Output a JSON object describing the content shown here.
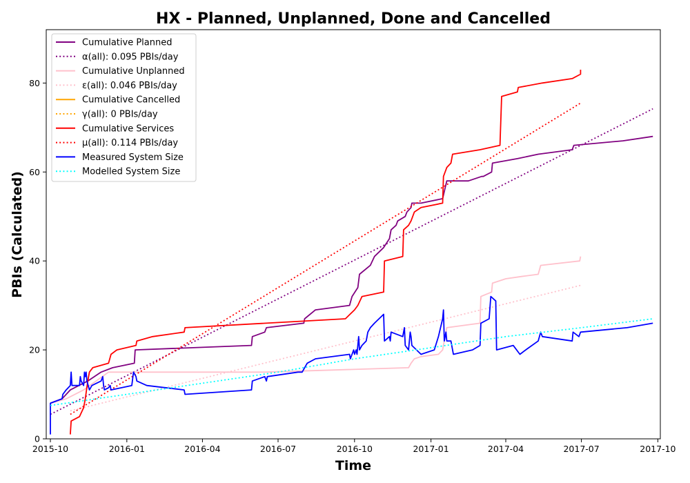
{
  "chart_data": {
    "type": "line",
    "title": "HX - Planned, Unplanned, Done  and Cancelled",
    "xlabel": "Time",
    "ylabel": "PBIs (Calculated)",
    "xlim": [
      "2015-09-26",
      "2017-10-04"
    ],
    "ylim": [
      0,
      92
    ],
    "x_ticks": [
      "2015-10",
      "2016-01",
      "2016-04",
      "2016-07",
      "2016-10",
      "2017-01",
      "2017-04",
      "2017-07",
      "2017-10"
    ],
    "y_ticks": [
      0,
      20,
      40,
      60,
      80
    ],
    "grid": false,
    "legend_position": "upper-left",
    "series": [
      {
        "name": "Cumulative Planned",
        "color": "#800080",
        "style": "solid",
        "points": [
          [
            "2015-10-01",
            8
          ],
          [
            "2015-10-15",
            9
          ],
          [
            "2015-10-25",
            11
          ],
          [
            "2015-11-15",
            13
          ],
          [
            "2015-12-01",
            15
          ],
          [
            "2015-12-15",
            16
          ],
          [
            "2016-01-10",
            17
          ],
          [
            "2016-01-11",
            20
          ],
          [
            "2016-05-30",
            21
          ],
          [
            "2016-05-31",
            23
          ],
          [
            "2016-06-15",
            24
          ],
          [
            "2016-06-17",
            25
          ],
          [
            "2016-08-01",
            26
          ],
          [
            "2016-08-02",
            27
          ],
          [
            "2016-08-15",
            29
          ],
          [
            "2016-09-25",
            30
          ],
          [
            "2016-09-28",
            32
          ],
          [
            "2016-10-05",
            34
          ],
          [
            "2016-10-07",
            37
          ],
          [
            "2016-10-20",
            39
          ],
          [
            "2016-10-25",
            41
          ],
          [
            "2016-11-05",
            43
          ],
          [
            "2016-11-12",
            45
          ],
          [
            "2016-11-14",
            47
          ],
          [
            "2016-11-20",
            48
          ],
          [
            "2016-11-22",
            49
          ],
          [
            "2016-12-01",
            50
          ],
          [
            "2016-12-03",
            51
          ],
          [
            "2016-12-08",
            52
          ],
          [
            "2016-12-09",
            53
          ],
          [
            "2016-12-20",
            53
          ],
          [
            "2017-01-15",
            54
          ],
          [
            "2017-01-20",
            58
          ],
          [
            "2017-02-15",
            58
          ],
          [
            "2017-03-03",
            59
          ],
          [
            "2017-03-05",
            59
          ],
          [
            "2017-03-15",
            60
          ],
          [
            "2017-03-16",
            62
          ],
          [
            "2017-04-15",
            63
          ],
          [
            "2017-05-10",
            64
          ],
          [
            "2017-06-20",
            65
          ],
          [
            "2017-06-22",
            66
          ],
          [
            "2017-08-20",
            67
          ],
          [
            "2017-09-25",
            68
          ]
        ]
      },
      {
        "name": "α(all): 0.095 PBIs/day",
        "color": "#800080",
        "style": "dotted",
        "points": [
          [
            "2015-10-01",
            5.5
          ],
          [
            "2017-09-25",
            74.2
          ]
        ]
      },
      {
        "name": "Cumulative Unplanned",
        "color": "#ffc0cb",
        "style": "solid",
        "points": [
          [
            "2015-10-01",
            8
          ],
          [
            "2015-10-20",
            9
          ],
          [
            "2015-11-10",
            11
          ],
          [
            "2015-11-25",
            13
          ],
          [
            "2015-12-10",
            15
          ],
          [
            "2016-06-15",
            15
          ],
          [
            "2016-12-05",
            16
          ],
          [
            "2016-12-08",
            17
          ],
          [
            "2016-12-12",
            18
          ],
          [
            "2016-12-20",
            18.5
          ],
          [
            "2017-01-10",
            19
          ],
          [
            "2017-01-15",
            20
          ],
          [
            "2017-01-20",
            25
          ],
          [
            "2017-03-01",
            26
          ],
          [
            "2017-03-02",
            32
          ],
          [
            "2017-03-15",
            33
          ],
          [
            "2017-03-16",
            35
          ],
          [
            "2017-04-01",
            36
          ],
          [
            "2017-04-20",
            36.5
          ],
          [
            "2017-05-10",
            37
          ],
          [
            "2017-05-13",
            39
          ],
          [
            "2017-06-29",
            40
          ],
          [
            "2017-06-30",
            41
          ]
        ]
      },
      {
        "name": "ε(all): 0.046 PBIs/day",
        "color": "#ffc0cb",
        "style": "dotted",
        "points": [
          [
            "2015-10-25",
            6.3
          ],
          [
            "2017-06-30",
            34.5
          ]
        ]
      },
      {
        "name": "Cumulative Cancelled",
        "color": "#ffa500",
        "style": "solid",
        "points": []
      },
      {
        "name": "γ(all): 0 PBIs/day",
        "color": "#ffa500",
        "style": "dotted",
        "points": []
      },
      {
        "name": "Cumulative Services",
        "color": "#ff0000",
        "style": "solid",
        "points": [
          [
            "2015-10-25",
            1
          ],
          [
            "2015-10-26",
            4
          ],
          [
            "2015-11-05",
            5
          ],
          [
            "2015-11-10",
            7
          ],
          [
            "2015-11-12",
            9
          ],
          [
            "2015-11-15",
            13
          ],
          [
            "2015-11-17",
            15
          ],
          [
            "2015-11-21",
            16
          ],
          [
            "2015-12-10",
            17
          ],
          [
            "2015-12-13",
            19
          ],
          [
            "2015-12-20",
            20
          ],
          [
            "2016-01-12",
            21
          ],
          [
            "2016-01-13",
            22
          ],
          [
            "2016-02-01",
            23
          ],
          [
            "2016-03-10",
            24
          ],
          [
            "2016-03-11",
            25
          ],
          [
            "2016-09-20",
            27
          ],
          [
            "2016-10-01",
            29
          ],
          [
            "2016-10-05",
            30
          ],
          [
            "2016-10-10",
            32
          ],
          [
            "2016-11-05",
            33
          ],
          [
            "2016-11-06",
            40
          ],
          [
            "2016-11-28",
            41
          ],
          [
            "2016-11-29",
            47
          ],
          [
            "2016-12-05",
            48
          ],
          [
            "2016-12-08",
            49
          ],
          [
            "2016-12-12",
            51
          ],
          [
            "2016-12-20",
            52
          ],
          [
            "2017-01-15",
            53
          ],
          [
            "2017-01-16",
            59
          ],
          [
            "2017-01-20",
            61
          ],
          [
            "2017-01-25",
            62
          ],
          [
            "2017-01-27",
            64
          ],
          [
            "2017-03-01",
            65
          ],
          [
            "2017-03-25",
            66
          ],
          [
            "2017-03-27",
            77
          ],
          [
            "2017-04-15",
            78
          ],
          [
            "2017-04-16",
            79
          ],
          [
            "2017-05-15",
            80
          ],
          [
            "2017-06-20",
            81
          ],
          [
            "2017-06-30",
            82
          ],
          [
            "2017-06-30",
            83
          ]
        ]
      },
      {
        "name": "μ(all): 0.114 PBIs/day",
        "color": "#ff0000",
        "style": "dotted",
        "points": [
          [
            "2015-10-25",
            5.5
          ],
          [
            "2017-06-30",
            75.5
          ]
        ]
      },
      {
        "name": "Measured System Size",
        "color": "#0000ff",
        "style": "solid",
        "points": [
          [
            "2015-10-01",
            1
          ],
          [
            "2015-10-01",
            8
          ],
          [
            "2015-10-15",
            9
          ],
          [
            "2015-10-16",
            10
          ],
          [
            "2015-10-20",
            11
          ],
          [
            "2015-10-25",
            12
          ],
          [
            "2015-10-26",
            15
          ],
          [
            "2015-10-27",
            12
          ],
          [
            "2015-11-05",
            12
          ],
          [
            "2015-11-06",
            14
          ],
          [
            "2015-11-07",
            13
          ],
          [
            "2015-11-10",
            12
          ],
          [
            "2015-11-11",
            15
          ],
          [
            "2015-11-12",
            14
          ],
          [
            "2015-11-13",
            15
          ],
          [
            "2015-11-14",
            13
          ],
          [
            "2015-11-17",
            11
          ],
          [
            "2015-11-20",
            12
          ],
          [
            "2015-12-01",
            13
          ],
          [
            "2015-12-03",
            14
          ],
          [
            "2015-12-04",
            12
          ],
          [
            "2015-12-05",
            11
          ],
          [
            "2015-12-10",
            11.5
          ],
          [
            "2015-12-12",
            12
          ],
          [
            "2015-12-13",
            11
          ],
          [
            "2016-01-07",
            12
          ],
          [
            "2016-01-09",
            15
          ],
          [
            "2016-01-12",
            14
          ],
          [
            "2016-01-13",
            13
          ],
          [
            "2016-01-25",
            12
          ],
          [
            "2016-03-10",
            11
          ],
          [
            "2016-03-11",
            10
          ],
          [
            "2016-05-30",
            11
          ],
          [
            "2016-05-31",
            13
          ],
          [
            "2016-06-15",
            14
          ],
          [
            "2016-06-17",
            13
          ],
          [
            "2016-06-18",
            14
          ],
          [
            "2016-07-25",
            15
          ],
          [
            "2016-07-30",
            15
          ],
          [
            "2016-08-05",
            17
          ],
          [
            "2016-08-15",
            18
          ],
          [
            "2016-09-25",
            19
          ],
          [
            "2016-09-26",
            18
          ],
          [
            "2016-09-28",
            19
          ],
          [
            "2016-09-30",
            20
          ],
          [
            "2016-10-01",
            19
          ],
          [
            "2016-10-03",
            20
          ],
          [
            "2016-10-04",
            19
          ],
          [
            "2016-10-06",
            23
          ],
          [
            "2016-10-07",
            20
          ],
          [
            "2016-10-10",
            21
          ],
          [
            "2016-10-15",
            22
          ],
          [
            "2016-10-17",
            24
          ],
          [
            "2016-10-20",
            25
          ],
          [
            "2016-10-25",
            26
          ],
          [
            "2016-11-05",
            28
          ],
          [
            "2016-11-06",
            22
          ],
          [
            "2016-11-12",
            23
          ],
          [
            "2016-11-13",
            22
          ],
          [
            "2016-11-14",
            24
          ],
          [
            "2016-11-28",
            23
          ],
          [
            "2016-11-30",
            25
          ],
          [
            "2016-12-01",
            21
          ],
          [
            "2016-12-05",
            20
          ],
          [
            "2016-12-07",
            24
          ],
          [
            "2016-12-08",
            23
          ],
          [
            "2016-12-09",
            21
          ],
          [
            "2016-12-20",
            19
          ],
          [
            "2017-01-05",
            20
          ],
          [
            "2017-01-10",
            23
          ],
          [
            "2017-01-15",
            27
          ],
          [
            "2017-01-16",
            29
          ],
          [
            "2017-01-17",
            22
          ],
          [
            "2017-01-19",
            24
          ],
          [
            "2017-01-20",
            22
          ],
          [
            "2017-01-25",
            22
          ],
          [
            "2017-01-28",
            19
          ],
          [
            "2017-02-20",
            20
          ],
          [
            "2017-03-01",
            21
          ],
          [
            "2017-03-02",
            26
          ],
          [
            "2017-03-12",
            27
          ],
          [
            "2017-03-14",
            32
          ],
          [
            "2017-03-20",
            31
          ],
          [
            "2017-03-21",
            20
          ],
          [
            "2017-04-10",
            21
          ],
          [
            "2017-04-18",
            19
          ],
          [
            "2017-04-25",
            20
          ],
          [
            "2017-05-10",
            22
          ],
          [
            "2017-05-13",
            24
          ],
          [
            "2017-05-15",
            23
          ],
          [
            "2017-06-20",
            22
          ],
          [
            "2017-06-21",
            24
          ],
          [
            "2017-06-28",
            23
          ],
          [
            "2017-06-30",
            24
          ],
          [
            "2017-08-25",
            25
          ],
          [
            "2017-09-25",
            26
          ]
        ]
      },
      {
        "name": "Modelled System Size",
        "color": "#00ffff",
        "style": "dotted",
        "points": [
          [
            "2015-10-01",
            7.5
          ],
          [
            "2016-01-01",
            10
          ],
          [
            "2016-04-01",
            12.5
          ],
          [
            "2016-07-01",
            15
          ],
          [
            "2016-10-01",
            18
          ],
          [
            "2017-01-01",
            20.5
          ],
          [
            "2017-04-01",
            23
          ],
          [
            "2017-07-01",
            25
          ],
          [
            "2017-09-25",
            27
          ]
        ]
      }
    ]
  }
}
